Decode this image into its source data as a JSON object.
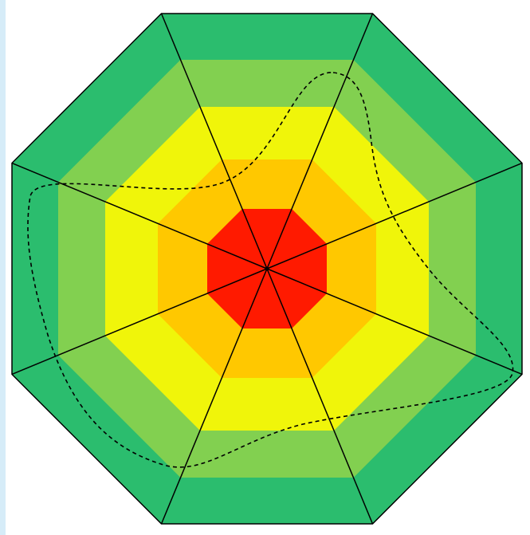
{
  "diagram": {
    "type": "octagonal-zone-radar",
    "sectors": 8,
    "zones": [
      {
        "color": "#ff1a00"
      },
      {
        "color": "#ffc800"
      },
      {
        "color": "#f0f50a"
      },
      {
        "color": "#82d050"
      },
      {
        "color": "#2bbd6e"
      }
    ],
    "outline_color": "#000000",
    "spoke_color": "#000000",
    "curve": {
      "style": "dashed",
      "color": "#000000"
    },
    "frame_accent_color": "#d6ecf8"
  }
}
